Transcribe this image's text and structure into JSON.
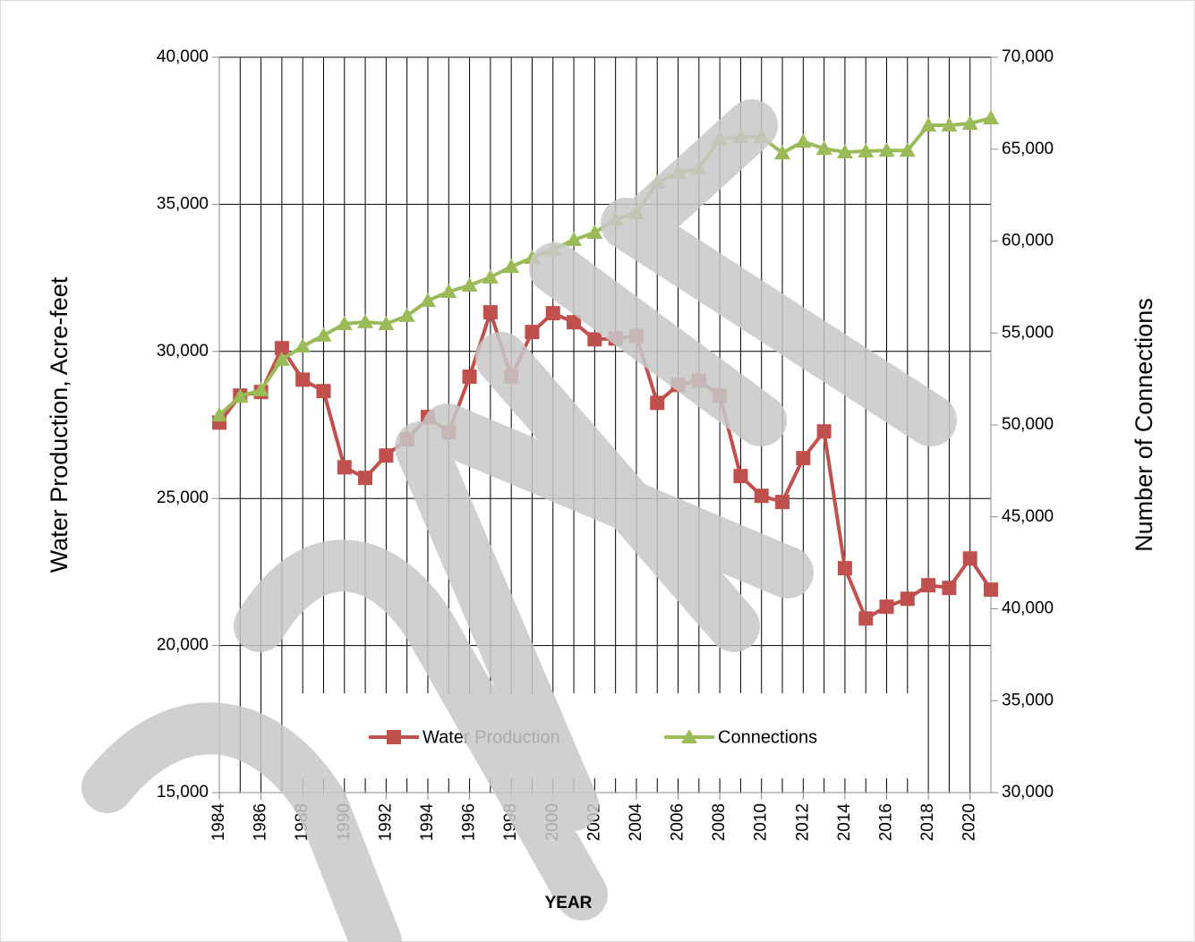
{
  "chart_data": {
    "type": "line",
    "xlabel": "YEAR",
    "ylabel": "Water Production, Acre-feet",
    "y2label": "Number of Connections",
    "x": [
      1984,
      1985,
      1986,
      1987,
      1988,
      1989,
      1990,
      1991,
      1992,
      1993,
      1994,
      1995,
      1996,
      1997,
      1998,
      1999,
      2000,
      2001,
      2002,
      2003,
      2004,
      2005,
      2006,
      2007,
      2008,
      2009,
      2010,
      2011,
      2012,
      2013,
      2014,
      2015,
      2016,
      2017,
      2018,
      2019,
      2020,
      2021
    ],
    "series": [
      {
        "name": "Water Production",
        "color": "#c0504d",
        "marker": "square",
        "values": [
          27580,
          28500,
          28620,
          30110,
          29040,
          28650,
          26060,
          25700,
          26460,
          27010,
          27770,
          27250,
          29140,
          31330,
          29140,
          30660,
          31300,
          30990,
          30410,
          30440,
          30530,
          28250,
          28860,
          29010,
          28500,
          25760,
          25090,
          24880,
          26370,
          27280,
          22630,
          20920,
          21320,
          21590,
          22050,
          21960,
          22960,
          21900
        ]
      },
      {
        "name": "Connections",
        "color": "#9bbb59",
        "marker": "triangle",
        "axis": "y2",
        "values": [
          50530,
          51560,
          51900,
          53550,
          54280,
          54870,
          55500,
          55600,
          55500,
          55940,
          56760,
          57250,
          57590,
          58030,
          58610,
          59100,
          59540,
          60070,
          60460,
          61190,
          61530,
          63190,
          63720,
          63960,
          65570,
          65670,
          65670,
          64790,
          65420,
          65030,
          64840,
          64890,
          64930,
          64930,
          66300,
          66300,
          66400,
          66690
        ]
      }
    ],
    "xlim": [
      1984,
      2021
    ],
    "xticks": [
      1984,
      1986,
      1988,
      1990,
      1992,
      1994,
      1996,
      1998,
      2000,
      2002,
      2004,
      2006,
      2008,
      2010,
      2012,
      2014,
      2016,
      2018,
      2020
    ],
    "ylim": [
      15000,
      40000
    ],
    "yticks": [
      {
        "value": 15000,
        "label": "15,000"
      },
      {
        "value": 20000,
        "label": "20,000"
      },
      {
        "value": 25000,
        "label": "25,000"
      },
      {
        "value": 30000,
        "label": "30,000"
      },
      {
        "value": 35000,
        "label": "35,000"
      },
      {
        "value": 40000,
        "label": "40,000"
      }
    ],
    "y2lim": [
      30000,
      70000
    ],
    "y2ticks": [
      {
        "value": 30000,
        "label": "30,000"
      },
      {
        "value": 35000,
        "label": "35,000"
      },
      {
        "value": 40000,
        "label": "40,000"
      },
      {
        "value": 45000,
        "label": "45,000"
      },
      {
        "value": 50000,
        "label": "50,000"
      },
      {
        "value": 55000,
        "label": "55,000"
      },
      {
        "value": 60000,
        "label": "60,000"
      },
      {
        "value": 65000,
        "label": "65,000"
      },
      {
        "value": 70000,
        "label": "70,000"
      }
    ],
    "grid": true,
    "legend": "bottom"
  }
}
